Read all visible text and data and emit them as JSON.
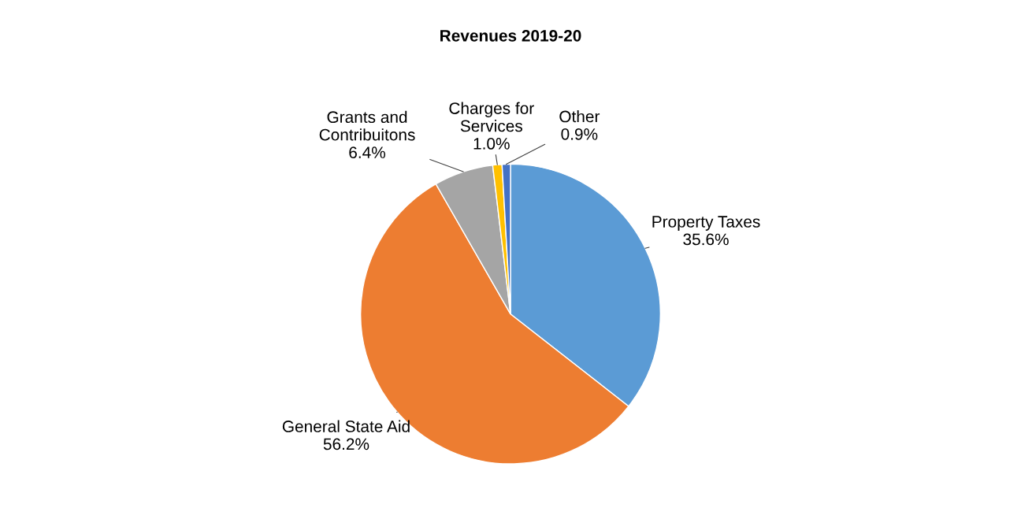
{
  "chart_data": {
    "type": "pie",
    "title": "Revenues 2019-20",
    "categories": [
      "Property Taxes",
      "General State Aid",
      "Grants and\nContribuitons",
      "Charges for\nServices",
      "Other"
    ],
    "values": [
      35.6,
      56.2,
      6.4,
      1.0,
      0.9
    ],
    "value_labels": [
      "35.6%",
      "56.2%",
      "6.4%",
      "1.0%",
      "0.9%"
    ],
    "colors": [
      "#5b9bd5",
      "#ed7d31",
      "#a5a5a5",
      "#ffc000",
      "#4472c4"
    ],
    "legend": false
  }
}
